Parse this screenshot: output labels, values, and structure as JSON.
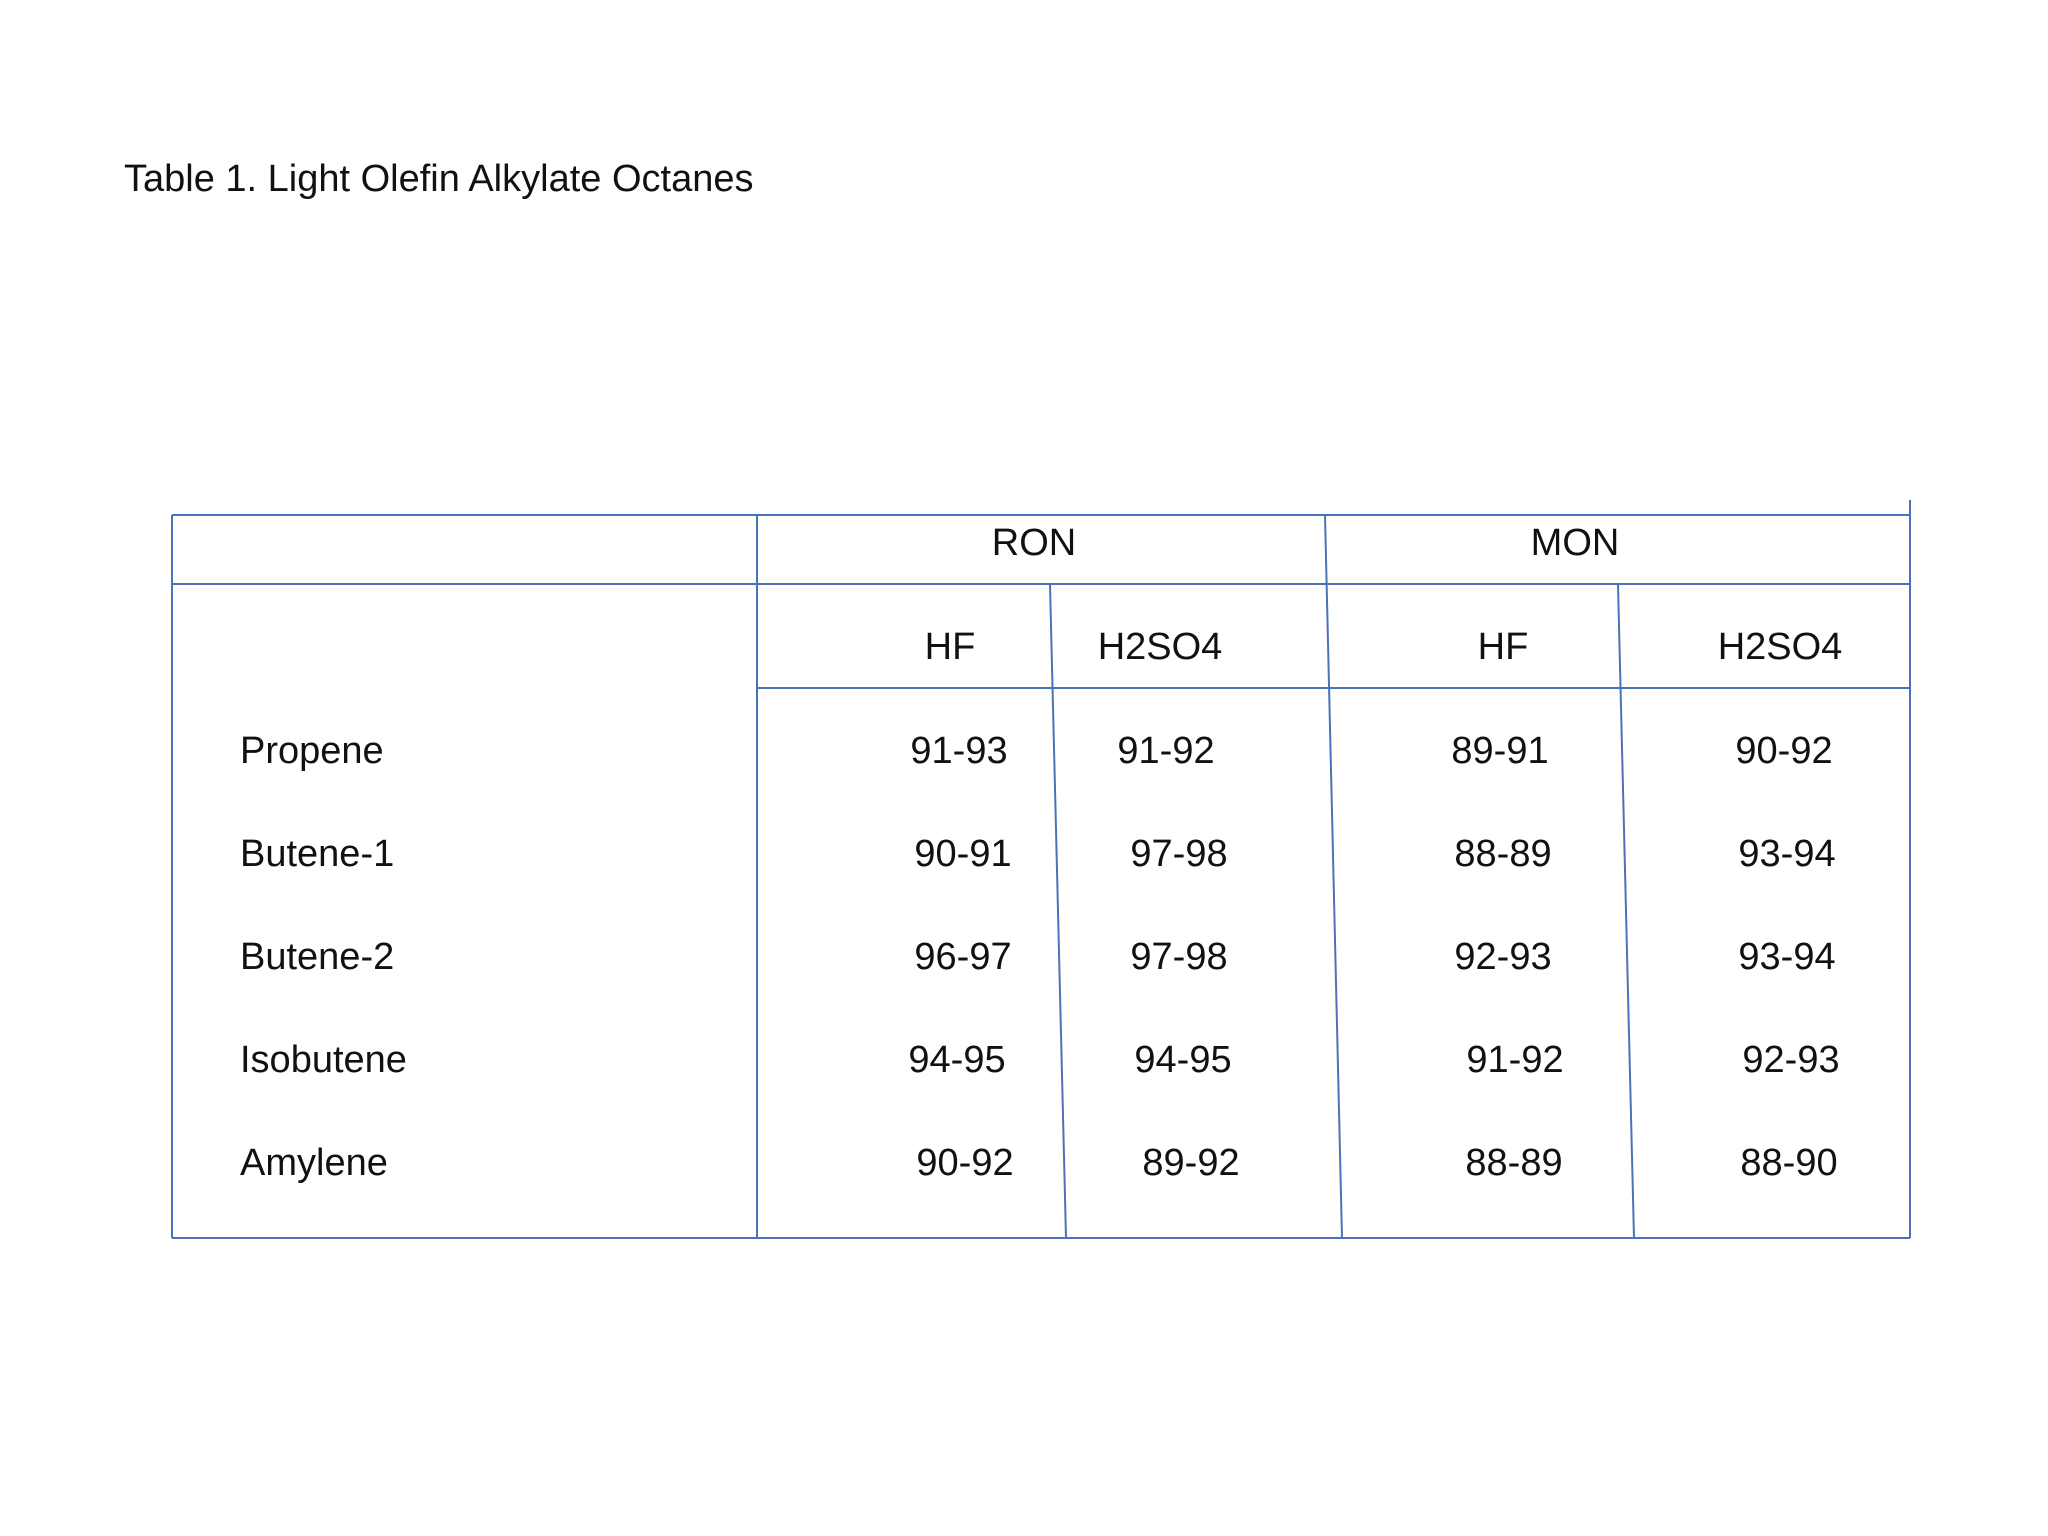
{
  "title": "Table 1. Light Olefin Alkylate Octanes",
  "table": {
    "groups": [
      "RON",
      "MON"
    ],
    "subheaders": [
      "HF",
      "H2SO4",
      "HF",
      "H2SO4"
    ],
    "rows": [
      {
        "name": "Propene",
        "values": [
          "91-93",
          "91-92",
          "89-91",
          "90-92"
        ]
      },
      {
        "name": "Butene-1",
        "values": [
          "90-91",
          "97-98",
          "88-89",
          "93-94"
        ]
      },
      {
        "name": "Butene-2",
        "values": [
          "96-97",
          "97-98",
          "92-93",
          "93-94"
        ]
      },
      {
        "name": "Isobutene",
        "values": [
          "94-95",
          "94-95",
          "91-92",
          "92-93"
        ]
      },
      {
        "name": "Amylene",
        "values": [
          "90-92",
          "89-92",
          "88-89",
          "88-90"
        ]
      }
    ]
  },
  "colors": {
    "line": "#4a72b8",
    "text": "#111111"
  }
}
